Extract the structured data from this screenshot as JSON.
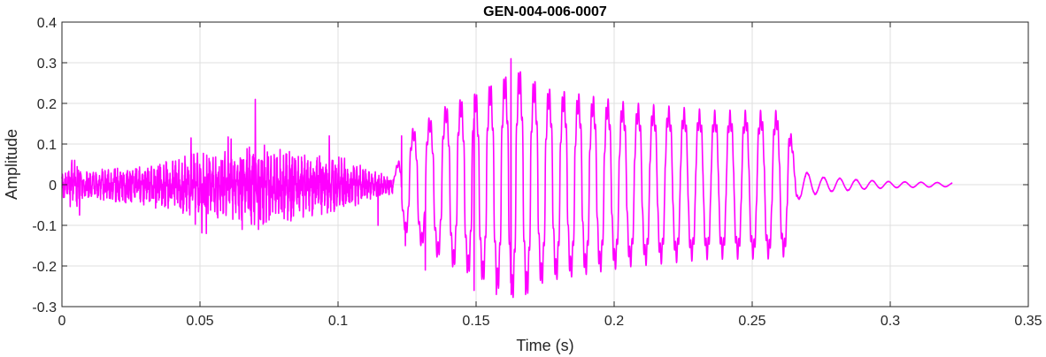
{
  "chart_data": {
    "type": "line",
    "title": "GEN-004-006-0007",
    "xlabel": "Time (s)",
    "ylabel": "Amplitude",
    "xlim": [
      0,
      0.35
    ],
    "ylim": [
      -0.3,
      0.4
    ],
    "grid": true,
    "line_color": "#ff00ff",
    "x_ticks": [
      0,
      0.05,
      0.1,
      0.15,
      0.2,
      0.25,
      0.3,
      0.35
    ],
    "x_tick_labels": [
      "0",
      "0.05",
      "0.1",
      "0.15",
      "0.2",
      "0.25",
      "0.3",
      "0.35"
    ],
    "y_ticks": [
      -0.3,
      -0.2,
      -0.1,
      0,
      0.1,
      0.2,
      0.3,
      0.4
    ],
    "y_tick_labels": [
      "-0.3",
      "-0.2",
      "-0.1",
      "0",
      "0.1",
      "0.2",
      "0.3",
      "0.4"
    ],
    "series": [
      {
        "duration": 0.3225,
        "envelope": [
          [
            0.0,
            0.03
          ],
          [
            0.004,
            0.055
          ],
          [
            0.01,
            0.03
          ],
          [
            0.02,
            0.04
          ],
          [
            0.03,
            0.045
          ],
          [
            0.045,
            0.07
          ],
          [
            0.06,
            0.08
          ],
          [
            0.07,
            0.09
          ],
          [
            0.085,
            0.08
          ],
          [
            0.095,
            0.07
          ],
          [
            0.105,
            0.05
          ],
          [
            0.115,
            0.025
          ],
          [
            0.12,
            0.02
          ],
          [
            0.125,
            0.13
          ],
          [
            0.13,
            0.15
          ],
          [
            0.14,
            0.2
          ],
          [
            0.15,
            0.23
          ],
          [
            0.16,
            0.27
          ],
          [
            0.165,
            0.29
          ],
          [
            0.175,
            0.24
          ],
          [
            0.19,
            0.22
          ],
          [
            0.205,
            0.2
          ],
          [
            0.22,
            0.19
          ],
          [
            0.235,
            0.18
          ],
          [
            0.25,
            0.18
          ],
          [
            0.26,
            0.18
          ],
          [
            0.263,
            0.17
          ],
          [
            0.266,
            0.04
          ],
          [
            0.275,
            0.02
          ],
          [
            0.29,
            0.012
          ],
          [
            0.3,
            0.008
          ],
          [
            0.3225,
            0.005
          ]
        ],
        "peaks": [
          [
            0.0046,
            0.06
          ],
          [
            0.0468,
            0.115
          ],
          [
            0.07,
            0.21
          ],
          [
            0.0712,
            -0.11
          ],
          [
            0.0653,
            -0.11
          ],
          [
            0.0968,
            0.12
          ],
          [
            0.1145,
            -0.1
          ],
          [
            0.0523,
            -0.12
          ],
          [
            0.1626,
            0.31
          ],
          [
            0.1679,
            -0.27
          ],
          [
            0.1573,
            -0.27
          ],
          [
            0.1493,
            -0.26
          ],
          [
            0.1316,
            -0.21
          ],
          [
            0.123,
            0.12
          ],
          [
            0.1244,
            -0.15
          ]
        ]
      }
    ]
  }
}
